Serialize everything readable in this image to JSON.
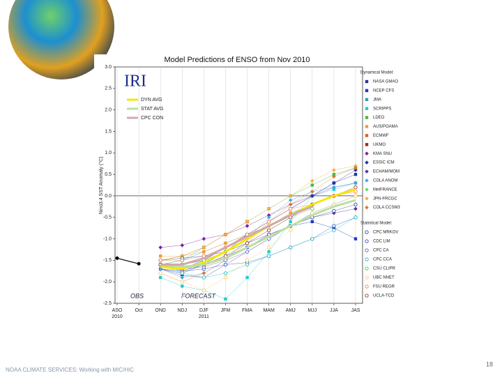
{
  "footer": "NOAA CLIMATE SERVICES: Working with MIC/HIC",
  "page_number": "18",
  "chart_data": {
    "type": "line",
    "title": "Model Predictions of ENSO from Nov 2010",
    "y_label": "Nino3.4 SST Anomaly (°C)",
    "logo": "IRI",
    "forecast_label": "FORECAST",
    "dynamical_heading": "Dynamical Model:",
    "statistical_heading": "Statistical Model:",
    "categories": [
      "ASO",
      "Oct",
      "OND",
      "NDJ",
      "DJF",
      "JFM",
      "FMA",
      "MAM",
      "AMJ",
      "MJJ",
      "JJA",
      "JAS"
    ],
    "x_sublabels": [
      "2010",
      null,
      null,
      null,
      "2011",
      null,
      null,
      null,
      null,
      null,
      null,
      null
    ],
    "ylim": [
      -2.5,
      3.0
    ],
    "yticks": [
      {
        "value": -2.5,
        "label": "-2.5"
      },
      {
        "value": -2.0,
        "label": "-2.0"
      },
      {
        "value": -1.5,
        "label": "-1.5"
      },
      {
        "value": -1.0,
        "label": "-1.0"
      },
      {
        "value": -0.5,
        "label": "-0.5"
      },
      {
        "value": 0,
        "label": "0.0"
      },
      {
        "value": 0.5,
        "label": "0.5"
      },
      {
        "value": 1.0,
        "label": "1.0"
      },
      {
        "value": 1.5,
        "label": "1.5"
      },
      {
        "value": 2.0,
        "label": "2.0"
      },
      {
        "value": 2.5,
        "label": "2.5"
      },
      {
        "value": 3.0,
        "label": "3.0"
      }
    ],
    "series": [
      {
        "name": "OBS",
        "color": "#000000",
        "marker": "obs",
        "values": [
          -1.45,
          -1.58,
          null,
          null,
          null,
          null,
          null,
          null,
          null,
          null,
          null,
          null
        ]
      },
      {
        "name": "DYN AVG",
        "color": "#f5e600",
        "marker": "average",
        "values": [
          null,
          null,
          -1.65,
          -1.7,
          -1.55,
          -1.3,
          -1.0,
          -0.7,
          -0.45,
          -0.2,
          0.0,
          0.15
        ]
      },
      {
        "name": "STAT AVG",
        "color": "#b8e0a0",
        "marker": "average",
        "values": [
          null,
          null,
          -1.6,
          -1.65,
          -1.6,
          -1.45,
          -1.2,
          -0.95,
          -0.7,
          -0.45,
          -0.25,
          -0.1
        ]
      },
      {
        "name": "CPC CON",
        "color": "#d0a8b0",
        "marker": "average",
        "values": [
          null,
          null,
          -1.6,
          -1.6,
          -1.45,
          -1.2,
          -0.95,
          -0.7,
          -0.45,
          -0.25,
          null,
          null
        ]
      },
      {
        "name": "NASA GMAO",
        "color": "#1f3a93",
        "marker": "square",
        "values": [
          null,
          null,
          -1.7,
          -1.8,
          -1.6,
          -1.3,
          -0.9,
          -0.6,
          -0.3,
          0.0,
          0.3,
          0.5
        ]
      },
      {
        "name": "NCEP CFS",
        "color": "#2233cc",
        "marker": "square",
        "values": [
          null,
          null,
          -1.7,
          -1.75,
          -1.6,
          -1.4,
          -1.2,
          -0.9,
          -0.7,
          -0.6,
          -0.75,
          -1.0
        ]
      },
      {
        "name": "JMA",
        "color": "#3399cc",
        "marker": "square",
        "values": [
          null,
          null,
          -1.6,
          -1.5,
          -1.3,
          -1.1,
          -0.9,
          -0.7,
          -0.4,
          -0.2,
          null,
          null
        ]
      },
      {
        "name": "SCRIPPS",
        "color": "#22cccc",
        "marker": "square",
        "values": [
          null,
          null,
          -1.9,
          -2.1,
          -2.2,
          -2.4,
          -1.9,
          -1.3,
          -0.6,
          0.0,
          0.15,
          0.3
        ]
      },
      {
        "name": "LDEO",
        "color": "#44bb44",
        "marker": "square",
        "values": [
          null,
          null,
          -1.6,
          -1.5,
          -1.2,
          -0.9,
          -0.6,
          -0.3,
          0.0,
          0.25,
          0.5,
          0.65
        ]
      },
      {
        "name": "AUS/POAMA",
        "color": "#f0a030",
        "marker": "square",
        "values": [
          null,
          null,
          -1.4,
          -1.4,
          -1.3,
          -1.1,
          -0.9,
          -0.7,
          -0.4,
          null,
          null,
          null
        ]
      },
      {
        "name": "ECMWF",
        "color": "#e06020",
        "marker": "square",
        "values": [
          null,
          null,
          -1.5,
          -1.4,
          -1.2,
          -0.9,
          -0.6,
          null,
          null,
          null,
          null,
          null
        ]
      },
      {
        "name": "UKMO",
        "color": "#aa2222",
        "marker": "square",
        "values": [
          null,
          null,
          -1.6,
          -1.6,
          -1.5,
          -1.2,
          -0.9,
          null,
          null,
          null,
          null,
          null
        ]
      },
      {
        "name": "KMA SNU",
        "color": "#7722aa",
        "marker": "diamond",
        "values": [
          null,
          null,
          -1.2,
          -1.15,
          -1.0,
          -0.9,
          -0.7,
          -0.45,
          -0.2,
          0.0,
          0.2,
          0.3
        ]
      },
      {
        "name": "ESSIC ICM",
        "color": "#2233aa",
        "marker": "diamond",
        "values": [
          null,
          null,
          -1.6,
          -1.7,
          -1.5,
          -1.2,
          -0.9,
          -0.6,
          -0.3,
          0.0,
          0.3,
          0.6
        ]
      },
      {
        "name": "ECHAM/MOM",
        "color": "#553399",
        "marker": "diamond",
        "values": [
          null,
          null,
          -1.7,
          -1.85,
          -1.9,
          -1.6,
          -1.3,
          -1.0,
          -0.7,
          -0.5,
          -0.4,
          -0.3
        ]
      },
      {
        "name": "COLA ANOM",
        "color": "#44aadd",
        "marker": "diamond",
        "values": [
          null,
          null,
          -1.7,
          -1.9,
          -1.8,
          -1.5,
          -1.0,
          -0.5,
          -0.1,
          0.1,
          0.2,
          0.3
        ]
      },
      {
        "name": "MetFRANCE",
        "color": "#66dd66",
        "marker": "diamond",
        "values": [
          null,
          null,
          -1.5,
          -1.4,
          -1.2,
          null,
          null,
          null,
          null,
          null,
          null,
          null
        ]
      },
      {
        "name": "JPN-FRCGC",
        "color": "#ffaa44",
        "marker": "diamond",
        "values": [
          null,
          null,
          -1.5,
          -1.4,
          -1.2,
          -0.9,
          -0.6,
          -0.3,
          0.0,
          0.35,
          0.6,
          0.7
        ]
      },
      {
        "name": "COLA CCSM3",
        "color": "#dd7733",
        "marker": "diamond",
        "values": [
          null,
          null,
          -1.8,
          -2.0,
          -1.8,
          -1.5,
          -1.1,
          -0.6,
          -0.2,
          0.1,
          0.45,
          0.65
        ]
      },
      {
        "name": "CPC MRKOV",
        "color": "#3344aa",
        "marker": "open",
        "values": [
          null,
          null,
          -1.5,
          -1.45,
          -1.4,
          -1.3,
          -1.1,
          -0.9,
          -0.7,
          -0.5,
          -0.35,
          -0.2
        ]
      },
      {
        "name": "CDC LIM",
        "color": "#2255cc",
        "marker": "open",
        "values": [
          null,
          null,
          -1.6,
          -1.75,
          -1.7,
          -1.6,
          -1.55,
          -1.4,
          -1.2,
          -1.0,
          -0.7,
          -0.5
        ]
      },
      {
        "name": "CPC CA",
        "color": "#6666bb",
        "marker": "open",
        "values": [
          null,
          null,
          -1.6,
          -1.7,
          -1.65,
          -1.5,
          -1.3,
          -1.0,
          -0.7,
          -0.4,
          -0.2,
          0.0
        ]
      },
      {
        "name": "CPC CCA",
        "color": "#22bbbb",
        "marker": "open",
        "values": [
          null,
          null,
          -1.6,
          -1.8,
          -1.9,
          -1.8,
          -1.6,
          -1.4,
          -1.2,
          -1.0,
          -0.8,
          -0.5
        ]
      },
      {
        "name": "CSU CLIPR",
        "color": "#55bb55",
        "marker": "open",
        "values": [
          null,
          null,
          -1.6,
          -1.6,
          -1.5,
          -1.3,
          -1.1,
          -0.8,
          -0.5,
          -0.3,
          null,
          null
        ]
      },
      {
        "name": "UBC NNET",
        "color": "#ffcc66",
        "marker": "open",
        "values": [
          null,
          null,
          -1.8,
          -2.0,
          -2.2,
          -1.9,
          -1.5,
          -1.2,
          -0.8,
          -0.4,
          -0.2,
          0.0
        ]
      },
      {
        "name": "FSU REGR",
        "color": "#ee8844",
        "marker": "open",
        "values": [
          null,
          null,
          -1.5,
          -1.5,
          -1.4,
          -1.2,
          -0.9,
          -0.6,
          -0.3,
          -0.2,
          0.0,
          0.1
        ]
      },
      {
        "name": "UCLA-TCD",
        "color": "#aa3333",
        "marker": "open",
        "values": [
          null,
          null,
          -1.6,
          -1.7,
          -1.6,
          -1.4,
          -1.1,
          -0.8,
          -0.5,
          -0.2,
          0.0,
          0.2
        ]
      }
    ]
  }
}
